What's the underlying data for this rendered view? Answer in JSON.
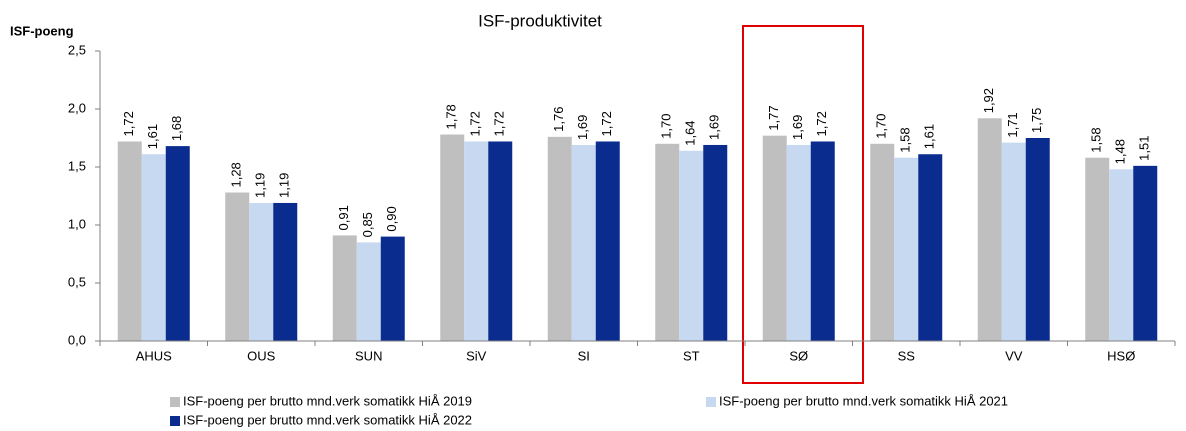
{
  "chart_data": {
    "type": "bar",
    "title": "ISF-produktivitet",
    "y_label": "ISF-poeng",
    "categories": [
      "AHUS",
      "OUS",
      "SUN",
      "SiV",
      "SI",
      "ST",
      "SØ",
      "SS",
      "VV",
      "HSØ"
    ],
    "series": [
      {
        "name": "ISF-poeng per brutto mnd.verk somatikk HiÅ 2019",
        "color": "#bfbfbf",
        "values": [
          1.72,
          1.28,
          0.91,
          1.78,
          1.76,
          1.7,
          1.77,
          1.7,
          1.92,
          1.58
        ],
        "value_labels": [
          "1,72",
          "1,28",
          "0,91",
          "1,78",
          "1,76",
          "1,70",
          "1,77",
          "1,70",
          "1,92",
          "1,58"
        ]
      },
      {
        "name": "ISF-poeng per brutto mnd.verk somatikk HiÅ 2021",
        "color": "#c6d9f1",
        "values": [
          1.61,
          1.19,
          0.85,
          1.72,
          1.69,
          1.64,
          1.69,
          1.58,
          1.71,
          1.48
        ],
        "value_labels": [
          "1,61",
          "1,19",
          "0,85",
          "1,72",
          "1,69",
          "1,64",
          "1,69",
          "1,58",
          "1,71",
          "1,48"
        ]
      },
      {
        "name": "ISF-poeng per brutto mnd.verk somatikk HiÅ 2022",
        "color": "#0a2c8f",
        "values": [
          1.68,
          1.19,
          0.9,
          1.72,
          1.72,
          1.69,
          1.72,
          1.61,
          1.75,
          1.51
        ],
        "value_labels": [
          "1,68",
          "1,19",
          "0,90",
          "1,72",
          "1,72",
          "1,69",
          "1,72",
          "1,61",
          "1,75",
          "1,51"
        ]
      }
    ],
    "ylim": [
      0,
      2.5
    ],
    "yticks": [
      {
        "value": 0,
        "label": "0,0"
      },
      {
        "value": 0.5,
        "label": "0,5"
      },
      {
        "value": 1,
        "label": "1,0"
      },
      {
        "value": 1.5,
        "label": "1,5"
      },
      {
        "value": 2,
        "label": "2,0"
      },
      {
        "value": 2.5,
        "label": "2,5"
      }
    ],
    "grid": false
  }
}
